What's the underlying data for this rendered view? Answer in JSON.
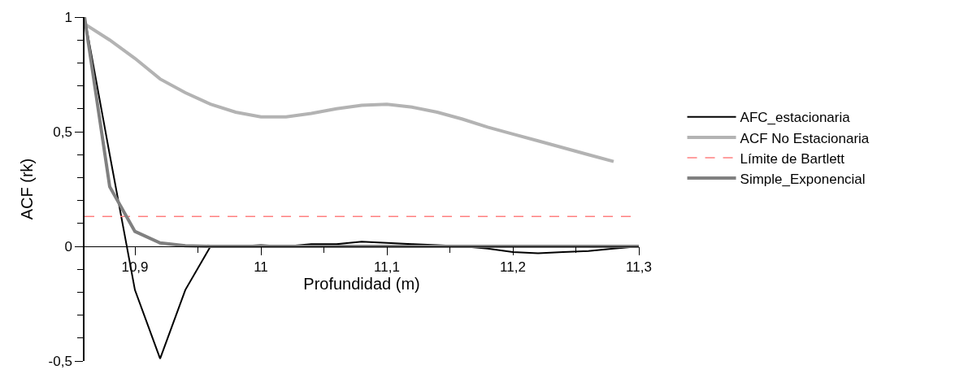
{
  "chart_data": {
    "type": "line",
    "xlabel": "Profundidad (m)",
    "ylabel": "ACF (rk)",
    "xlim": [
      10.86,
      11.3
    ],
    "ylim": [
      -0.5,
      1
    ],
    "xticks": [
      {
        "value": 10.9,
        "label": "10,9"
      },
      {
        "value": 10.95,
        "label": null
      },
      11,
      {
        "value": 11.05,
        "label": null
      },
      {
        "value": 11.1,
        "label": "11,1"
      },
      {
        "value": 11.15,
        "label": null
      },
      {
        "value": 11.2,
        "label": "11,2"
      },
      {
        "value": 11.25,
        "label": null
      },
      {
        "value": 11.3,
        "label": "11,3"
      }
    ],
    "yticks": [
      {
        "value": -0.5,
        "label": "-0,5"
      },
      {
        "value": -0.4,
        "label": null
      },
      {
        "value": -0.3,
        "label": null
      },
      {
        "value": -0.2,
        "label": null
      },
      {
        "value": -0.1,
        "label": null
      },
      0,
      {
        "value": 0.1,
        "label": null
      },
      {
        "value": 0.2,
        "label": null
      },
      {
        "value": 0.3,
        "label": null
      },
      {
        "value": 0.4,
        "label": null
      },
      {
        "value": 0.5,
        "label": "0,5"
      },
      {
        "value": 0.6,
        "label": null
      },
      {
        "value": 0.7,
        "label": null
      },
      {
        "value": 0.8,
        "label": null
      },
      {
        "value": 0.9,
        "label": null
      },
      1
    ],
    "grid": false,
    "legend": "right",
    "marker": "none",
    "series": [
      {
        "name": "AFC_estacionaria",
        "color": "#000000",
        "x": [
          10.86,
          10.88,
          10.9,
          10.92,
          10.94,
          10.96,
          10.98,
          11.0,
          11.02,
          11.04,
          11.06,
          11.08,
          11.1,
          11.12,
          11.14,
          11.16,
          11.18,
          11.2,
          11.22,
          11.24,
          11.26,
          11.28,
          11.3
        ],
        "values": [
          1,
          0.4,
          -0.19,
          -0.49,
          -0.19,
          0,
          0,
          0.005,
          0,
          0.01,
          0.01,
          0.02,
          0.015,
          0.01,
          0.005,
          0,
          -0.01,
          -0.025,
          -0.03,
          -0.025,
          -0.02,
          -0.01,
          0
        ]
      },
      {
        "name": "ACF No Estacionaria",
        "color": "#b3b3b3",
        "x": [
          10.86,
          10.88,
          10.9,
          10.92,
          10.94,
          10.96,
          10.98,
          11.0,
          11.02,
          11.04,
          11.06,
          11.08,
          11.1,
          11.12,
          11.14,
          11.16,
          11.18,
          11.2,
          11.22,
          11.24,
          11.26,
          11.28
        ],
        "values": [
          0.97,
          0.9,
          0.82,
          0.73,
          0.67,
          0.62,
          0.585,
          0.565,
          0.565,
          0.58,
          0.6,
          0.615,
          0.62,
          0.607,
          0.585,
          0.555,
          0.52,
          0.49,
          0.46,
          0.43,
          0.4,
          0.37
        ]
      },
      {
        "name": "Simple_Exponencial",
        "color": "#808080",
        "x": [
          10.86,
          10.88,
          10.9,
          10.92,
          10.94,
          10.96,
          10.98,
          11.0,
          11.1,
          11.2,
          11.3
        ],
        "values": [
          1,
          0.26,
          0.065,
          0.015,
          0.003,
          0,
          0,
          0,
          0,
          0,
          0
        ]
      }
    ],
    "ref_lines": [
      {
        "axis": "y",
        "value": 0.13,
        "label": "Límite de Bartlett",
        "color": "#ff8080",
        "line_style": "dashed"
      }
    ]
  }
}
